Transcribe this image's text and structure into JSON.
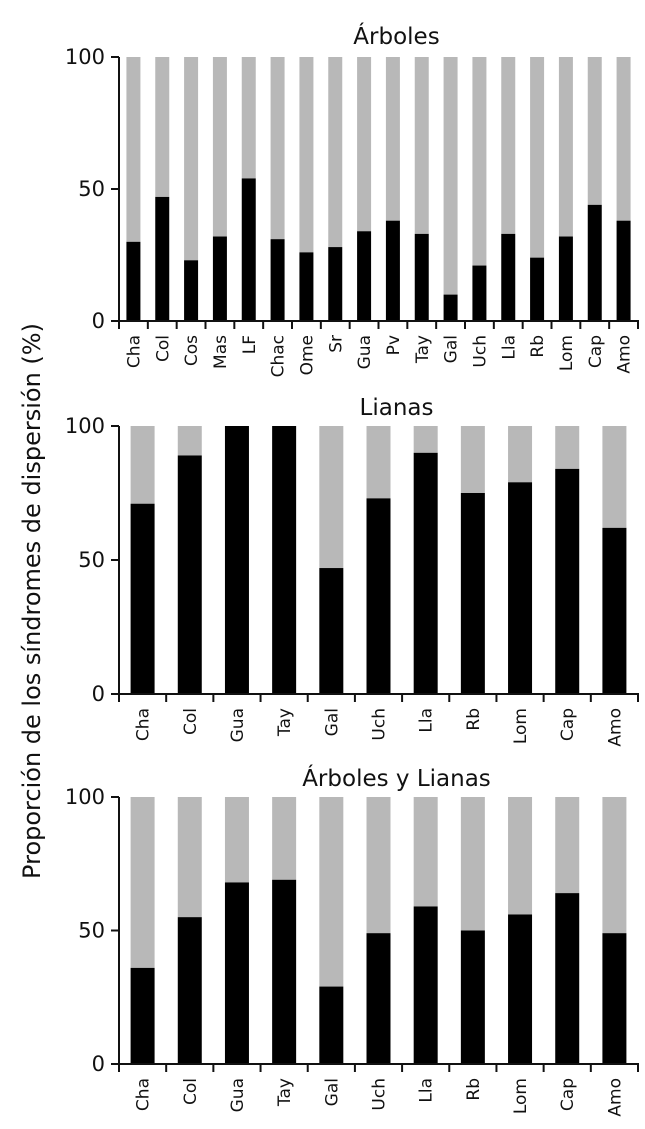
{
  "ylabel": "Proporción de los síndromes de dispersión (%)",
  "colors": {
    "dark": "#000000",
    "light": "#b8b8b8"
  },
  "chart_data": [
    {
      "type": "bar",
      "stacked": true,
      "title": "Árboles",
      "categories": [
        "Cha",
        "Col",
        "Cos",
        "Mas",
        "LF",
        "Chac",
        "Ome",
        "Sr",
        "Gua",
        "Pv",
        "Tay",
        "Gal",
        "Uch",
        "Lla",
        "Rb",
        "Lom",
        "Cap",
        "Amo"
      ],
      "values": [
        30,
        47,
        23,
        32,
        54,
        31,
        26,
        28,
        34,
        38,
        33,
        10,
        21,
        33,
        24,
        32,
        44,
        38
      ],
      "ylim": [
        0,
        100
      ],
      "yticks": [
        "0",
        "50",
        "100"
      ]
    },
    {
      "type": "bar",
      "stacked": true,
      "title": "Lianas",
      "categories": [
        "Cha",
        "Col",
        "Gua",
        "Tay",
        "Gal",
        "Uch",
        "Lla",
        "Rb",
        "Lom",
        "Cap",
        "Amo"
      ],
      "values": [
        71,
        89,
        100,
        100,
        47,
        73,
        90,
        75,
        79,
        84,
        62
      ],
      "ylim": [
        0,
        100
      ],
      "yticks": [
        "0",
        "50",
        "100"
      ]
    },
    {
      "type": "bar",
      "stacked": true,
      "title": "Árboles y Lianas",
      "categories": [
        "Cha",
        "Col",
        "Gua",
        "Tay",
        "Gal",
        "Uch",
        "Lla",
        "Rb",
        "Lom",
        "Cap",
        "Amo"
      ],
      "values": [
        36,
        55,
        68,
        69,
        29,
        49,
        59,
        50,
        56,
        64,
        49
      ],
      "ylim": [
        0,
        100
      ],
      "yticks": [
        "0",
        "50",
        "100"
      ]
    }
  ]
}
